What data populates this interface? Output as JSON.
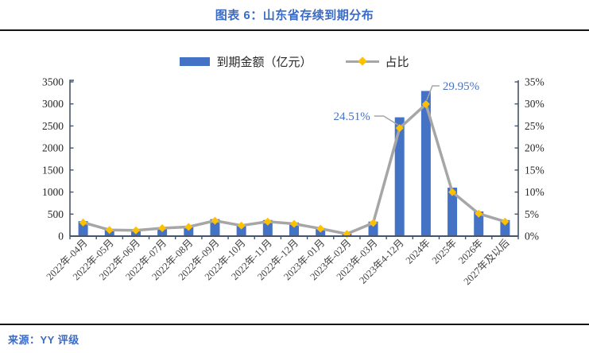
{
  "header": {
    "title": "图表 6：山东省存续到期分布"
  },
  "legend": {
    "items": [
      {
        "label": "到期金额（亿元）",
        "type": "bar"
      },
      {
        "label": "占比",
        "type": "line"
      }
    ]
  },
  "footer": {
    "source": "来源：YY 评级"
  },
  "colors": {
    "bar": "#4472C4",
    "line": "#A6A6A6",
    "marker": "#FFC000",
    "axis": "#44546A",
    "title": "#3A6BC5",
    "annotation": "#4472C4",
    "tick_label": "#262626",
    "x_label": "#404040"
  },
  "chart_data": {
    "type": "bar",
    "title": "图表 6：山东省存续到期分布",
    "categories": [
      "2022年-04月",
      "2022年-05月",
      "2022年-06月",
      "2022年-07月",
      "2022年-08月",
      "2022年-09月",
      "2022年-10月",
      "2022年-11月",
      "2022年-12月",
      "2023年-01月",
      "2023年-02月",
      "2023年-03月",
      "2023年4-12月",
      "2024年",
      "2025年",
      "2026年",
      "2027年及以后"
    ],
    "series": [
      {
        "name": "到期金额（亿元）",
        "type": "bar",
        "axis": "left",
        "values": [
          340,
          155,
          145,
          200,
          230,
          385,
          265,
          365,
          310,
          185,
          55,
          330,
          2696,
          3294,
          1100,
          560,
          365
        ]
      },
      {
        "name": "占比",
        "type": "line",
        "axis": "right",
        "values": [
          3.1,
          1.4,
          1.3,
          1.8,
          2.1,
          3.5,
          2.4,
          3.3,
          2.8,
          1.7,
          0.5,
          3.0,
          24.51,
          29.95,
          10.0,
          5.1,
          3.3
        ]
      }
    ],
    "left_axis": {
      "label": "",
      "ticks": [
        0,
        500,
        1000,
        1500,
        2000,
        2500,
        3000,
        3500
      ],
      "min": 0,
      "max": 3500
    },
    "right_axis": {
      "label": "",
      "ticks": [
        "0%",
        "5%",
        "10%",
        "15%",
        "20%",
        "25%",
        "30%",
        "35%"
      ],
      "tick_values": [
        0,
        5,
        10,
        15,
        20,
        25,
        30,
        35
      ],
      "min": 0,
      "max": 35
    },
    "grid": false,
    "legend_position": "top",
    "annotations": [
      {
        "category_index": 12,
        "series": "占比",
        "text": "24.51%"
      },
      {
        "category_index": 13,
        "series": "占比",
        "text": "29.95%"
      }
    ]
  }
}
